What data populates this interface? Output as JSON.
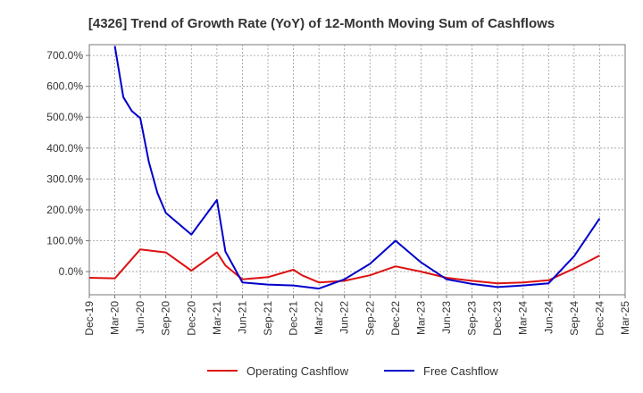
{
  "chart_data": {
    "type": "line",
    "title": "[4326]  Trend of Growth Rate (YoY) of 12-Month Moving Sum of Cashflows",
    "xlabel": "",
    "ylabel": "",
    "x_tick_labels": [
      "Dec-19",
      "Mar-20",
      "Jun-20",
      "Sep-20",
      "Dec-20",
      "Mar-21",
      "Jun-21",
      "Sep-21",
      "Dec-21",
      "Mar-22",
      "Jun-22",
      "Sep-22",
      "Dec-22",
      "Mar-23",
      "Jun-23",
      "Sep-23",
      "Dec-23",
      "Mar-24",
      "Jun-24",
      "Sep-24",
      "Dec-24",
      "Mar-25"
    ],
    "y_tick_labels": [
      "0.0%",
      "100.0%",
      "200.0%",
      "300.0%",
      "400.0%",
      "500.0%",
      "600.0%",
      "700.0%"
    ],
    "y_ticks": [
      0,
      100,
      200,
      300,
      400,
      500,
      600,
      700
    ],
    "ylim": [
      -75,
      735
    ],
    "grid": true,
    "legend_position": "bottom-center",
    "series": [
      {
        "name": "Operating Cashflow",
        "color": "#dd1111",
        "points": [
          [
            "2019-12",
            -20
          ],
          [
            "2020-03",
            -22
          ],
          [
            "2020-06",
            72
          ],
          [
            "2020-09",
            62
          ],
          [
            "2020-12",
            3
          ],
          [
            "2021-03",
            62
          ],
          [
            "2021-04",
            20
          ],
          [
            "2021-06",
            -25
          ],
          [
            "2021-09",
            -18
          ],
          [
            "2021-12",
            6
          ],
          [
            "2022-01",
            -12
          ],
          [
            "2022-03",
            -35
          ],
          [
            "2022-06",
            -30
          ],
          [
            "2022-09",
            -12
          ],
          [
            "2022-12",
            17
          ],
          [
            "2023-03",
            0
          ],
          [
            "2023-06",
            -20
          ],
          [
            "2023-09",
            -30
          ],
          [
            "2023-12",
            -38
          ],
          [
            "2024-03",
            -35
          ],
          [
            "2024-06",
            -28
          ],
          [
            "2024-09",
            10
          ],
          [
            "2024-12",
            52
          ]
        ]
      },
      {
        "name": "Free Cashflow",
        "color": "#0000cc",
        "points": [
          [
            "2020-03",
            730
          ],
          [
            "2020-04",
            565
          ],
          [
            "2020-05",
            520
          ],
          [
            "2020-06",
            497
          ],
          [
            "2020-07",
            355
          ],
          [
            "2020-08",
            255
          ],
          [
            "2020-09",
            190
          ],
          [
            "2020-12",
            120
          ],
          [
            "2021-03",
            232
          ],
          [
            "2021-04",
            65
          ],
          [
            "2021-06",
            -35
          ],
          [
            "2021-09",
            -42
          ],
          [
            "2021-12",
            -45
          ],
          [
            "2022-03",
            -55
          ],
          [
            "2022-06",
            -25
          ],
          [
            "2022-09",
            25
          ],
          [
            "2022-12",
            100
          ],
          [
            "2023-03",
            30
          ],
          [
            "2023-06",
            -25
          ],
          [
            "2023-09",
            -40
          ],
          [
            "2023-12",
            -50
          ],
          [
            "2024-03",
            -45
          ],
          [
            "2024-06",
            -38
          ],
          [
            "2024-09",
            50
          ],
          [
            "2024-12",
            172
          ]
        ]
      }
    ]
  }
}
